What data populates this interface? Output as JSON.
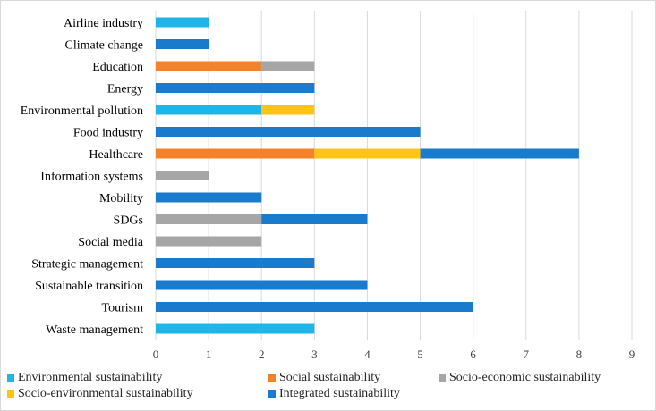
{
  "chart_data": {
    "type": "bar",
    "orientation": "horizontal",
    "stacked": true,
    "title": "",
    "xlabel": "",
    "ylabel": "",
    "xlim": [
      0,
      9
    ],
    "x_ticks": [
      "0",
      "1",
      "2",
      "3",
      "4",
      "5",
      "6",
      "7",
      "8",
      "9"
    ],
    "grid": true,
    "legend_position": "bottom",
    "categories": [
      "Airline industry",
      "Climate change",
      "Education",
      "Energy",
      "Environmental pollution",
      "Food industry",
      "Healthcare",
      "Information systems",
      "Mobility",
      "SDGs",
      "Social media",
      "Strategic management",
      "Sustainable transition",
      "Tourism",
      "Waste management"
    ],
    "series": [
      {
        "name": "Environmental sustainability",
        "color": "#1FB5E8",
        "values": [
          1,
          0,
          0,
          0,
          2,
          0,
          0,
          0,
          0,
          0,
          0,
          0,
          0,
          0,
          3
        ]
      },
      {
        "name": "Social sustainability",
        "color": "#F4822A",
        "values": [
          0,
          0,
          2,
          0,
          0,
          0,
          3,
          0,
          0,
          0,
          0,
          0,
          0,
          0,
          0
        ]
      },
      {
        "name": "Socio-economic sustainability",
        "color": "#A6A6A6",
        "values": [
          0,
          0,
          1,
          0,
          0,
          0,
          0,
          1,
          0,
          2,
          2,
          0,
          0,
          0,
          0
        ]
      },
      {
        "name": "Socio-environmental sustainability",
        "color": "#FFC516",
        "values": [
          0,
          0,
          0,
          0,
          1,
          0,
          2,
          0,
          0,
          0,
          0,
          0,
          0,
          0,
          0
        ]
      },
      {
        "name": "Integrated sustainability",
        "color": "#1A7ACB",
        "values": [
          0,
          1,
          0,
          3,
          0,
          5,
          3,
          0,
          2,
          2,
          0,
          3,
          4,
          6,
          0
        ]
      }
    ],
    "grid_color": "#d9d9d9"
  }
}
